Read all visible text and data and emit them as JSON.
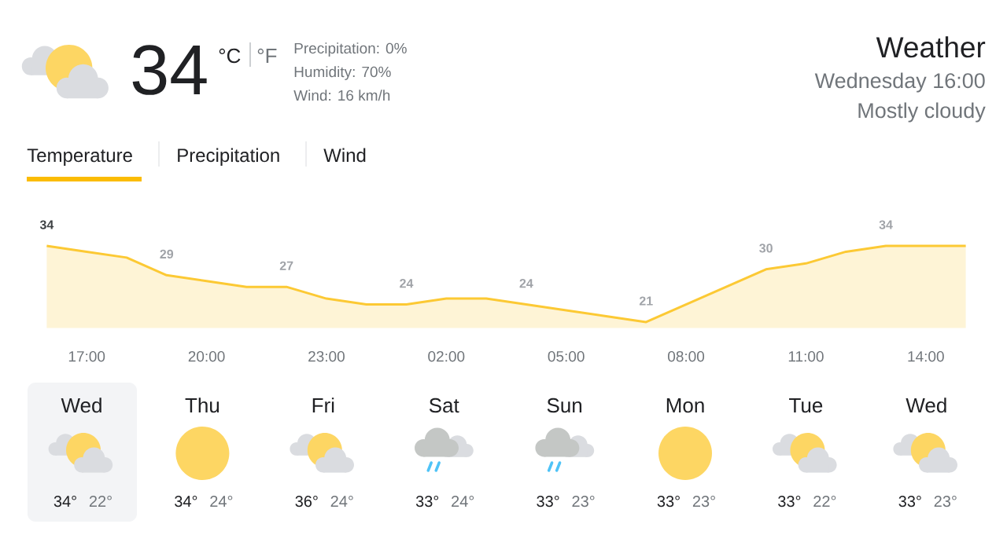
{
  "chart_data": [
    {
      "type": "other",
      "title": "Weather",
      "subtitle": "Wednesday 16:00",
      "annotations": [
        "Mostly cloudy",
        "34",
        "°C",
        "°F",
        "Precipitation: 0%",
        "Humidity: 70%",
        "Wind: 16 km/h",
        "Temperature",
        "Precipitation",
        "Wind"
      ]
    },
    {
      "type": "area",
      "color": "#fcc934",
      "tick_labels": "x",
      "categories": [
        null,
        "17:00",
        null,
        null,
        "20:00",
        null,
        null,
        "23:00",
        null,
        null,
        "02:00",
        null,
        null,
        "05:00",
        null,
        null,
        "08:00",
        null,
        null,
        "11:00",
        null,
        null,
        "14:00",
        null
      ],
      "values": [
        34,
        33,
        32,
        29,
        28,
        27,
        27,
        25,
        24,
        24,
        25,
        25,
        24,
        23,
        22,
        21,
        24,
        27,
        30,
        31,
        33,
        34,
        34,
        34
      ],
      "value_labels": [
        "34",
        null,
        null,
        "29",
        null,
        null,
        "27",
        null,
        null,
        "24",
        null,
        null,
        "24",
        null,
        null,
        "21",
        null,
        null,
        "30",
        null,
        null,
        "34",
        null,
        null
      ]
    },
    {
      "type": "other",
      "categories": [
        "Wed",
        "Thu",
        "Fri",
        "Sat",
        "Sun",
        "Mon",
        "Tue",
        "Wed"
      ],
      "annotations": [
        "34°",
        "22°",
        "34°",
        "24°",
        "36°",
        "24°",
        "33°",
        "24°",
        "33°",
        "23°",
        "33°",
        "23°",
        "33°",
        "22°",
        "33°",
        "23°"
      ]
    }
  ]
}
